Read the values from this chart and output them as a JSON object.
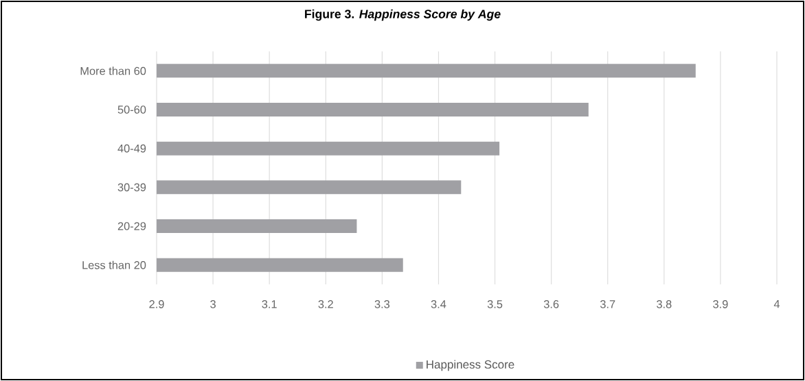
{
  "chart_data": {
    "type": "bar",
    "orientation": "horizontal",
    "title": "Figure 3. *Happiness Score by Age*",
    "categories": [
      "More than 60",
      "50-60",
      "40-49",
      "30-39",
      "20-29",
      "Less than 20"
    ],
    "series": [
      {
        "name": "Happiness Score",
        "color": "#a0a0a4",
        "values": [
          3.856,
          3.666,
          3.508,
          3.44,
          3.255,
          3.337
        ]
      }
    ],
    "xlim": [
      2.9,
      4
    ],
    "xticks": [
      2.9,
      3,
      3.1,
      3.2,
      3.3,
      3.4,
      3.5,
      3.6,
      3.7,
      3.8,
      3.9,
      4
    ],
    "grid": "x",
    "legend": "bottom"
  }
}
